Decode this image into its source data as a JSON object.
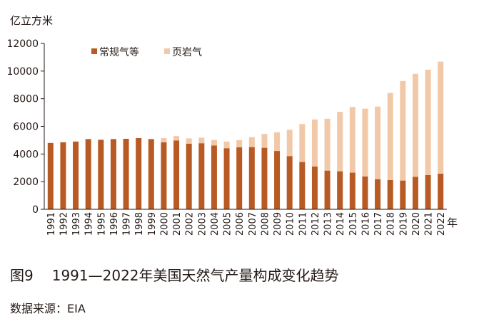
{
  "chart_data": {
    "type": "bar",
    "stacked": true,
    "ylabel": "亿立方米",
    "xlabel": "年",
    "ylim": [
      0,
      12000
    ],
    "yticks": [
      0,
      2000,
      4000,
      6000,
      8000,
      10000,
      12000
    ],
    "legend_position": "top-left",
    "categories": [
      "1991",
      "1992",
      "1993",
      "1994",
      "1995",
      "1996",
      "1997",
      "1998",
      "1999",
      "2000",
      "2001",
      "2002",
      "2003",
      "2004",
      "2005",
      "2006",
      "2007",
      "2008",
      "2009",
      "2010",
      "2011",
      "2012",
      "2013",
      "2014",
      "2015",
      "2016",
      "2017",
      "2018",
      "2019",
      "2020",
      "2021",
      "2022"
    ],
    "series": [
      {
        "name": "常规气等",
        "color": "#b85a23",
        "values": [
          4800,
          4850,
          4900,
          5080,
          5030,
          5080,
          5100,
          5150,
          5080,
          4850,
          4980,
          4750,
          4780,
          4620,
          4420,
          4480,
          4500,
          4450,
          4220,
          3850,
          3420,
          3100,
          2800,
          2750,
          2650,
          2380,
          2180,
          2120,
          2080,
          2350,
          2480,
          2580
        ]
      },
      {
        "name": "页岩气",
        "color": "#f2c9a8",
        "values": [
          0,
          0,
          0,
          0,
          0,
          0,
          0,
          0,
          0,
          300,
          320,
          380,
          400,
          400,
          480,
          520,
          720,
          1000,
          1350,
          1900,
          2750,
          3400,
          3750,
          4300,
          4750,
          4900,
          5250,
          6300,
          7200,
          7450,
          7620,
          8100
        ]
      }
    ]
  },
  "caption": {
    "figure_no": "图9",
    "title": "1991—2022年美国天然气产量构成变化趋势"
  },
  "source": "数据来源：EIA"
}
